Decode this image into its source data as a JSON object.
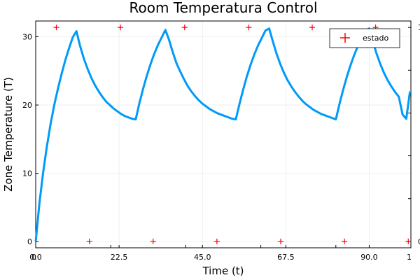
{
  "chart_data": {
    "type": "line",
    "title": "Room Temperatura Control",
    "xlabel": "Time (t)",
    "ylabel": "Zone Temperature (T)",
    "grid": true,
    "legend_placement": "top-right",
    "axes": {
      "primary_x": {
        "range": [
          0,
          101.25
        ],
        "ticks": [
          0,
          22.5,
          45,
          67.5,
          90
        ],
        "tick_labels": [
          "0.0",
          "22.5",
          "45.0",
          "67.5",
          "90.0"
        ]
      },
      "primary_y": {
        "range": [
          -0.9,
          32.3
        ],
        "ticks": [
          0,
          10,
          20,
          30
        ],
        "tick_labels": [
          "0",
          "10",
          "20",
          "30"
        ]
      },
      "secondary_x": {
        "range": [
          0,
          1.0
        ],
        "ticks": [
          0,
          0.2,
          0.4,
          0.6,
          0.8,
          1.0
        ],
        "tick_labels": [
          "0",
          "",
          "",
          "",
          "",
          "1"
        ]
      },
      "secondary_y": {
        "range": [
          -0.03,
          1.03
        ],
        "ticks": [
          0,
          0.2,
          0.4,
          0.6,
          0.8,
          1.0
        ],
        "tick_labels": [
          "0",
          "",
          "",
          "",
          "",
          "1"
        ]
      }
    },
    "series": [
      {
        "name": "",
        "color": "#009AF9",
        "x": [
          0,
          1,
          2,
          3,
          4,
          5,
          6,
          7,
          8,
          9,
          10,
          11,
          12,
          13,
          14,
          15,
          16,
          17,
          18,
          19,
          20,
          21,
          22,
          23,
          24,
          25,
          26,
          27,
          28,
          29,
          30,
          31,
          32,
          33,
          34,
          35,
          36,
          37,
          38,
          39,
          40,
          41,
          42,
          43,
          44,
          45,
          46,
          47,
          48,
          49,
          50,
          51,
          52,
          53,
          54,
          55,
          56,
          57,
          58,
          59,
          60,
          61,
          62,
          63,
          64,
          65,
          66,
          67,
          68,
          69,
          70,
          71,
          72,
          73,
          74,
          75,
          76,
          77,
          78,
          79,
          80,
          81,
          82,
          83,
          84,
          85,
          86,
          87,
          88,
          89,
          90,
          91,
          92,
          93,
          94,
          95,
          96,
          97,
          98,
          99,
          100,
          101
        ],
        "y": [
          0,
          5.6,
          10.1,
          13.9,
          17.2,
          20.0,
          22.4,
          24.6,
          26.6,
          28.3,
          29.9,
          30.8,
          28.6,
          26.8,
          25.3,
          24.0,
          22.9,
          22.0,
          21.2,
          20.5,
          20.0,
          19.5,
          19.1,
          18.7,
          18.4,
          18.2,
          18.0,
          17.9,
          20.3,
          22.4,
          24.3,
          26.0,
          27.5,
          28.8,
          29.9,
          31.0,
          29.5,
          27.7,
          26.1,
          24.9,
          23.8,
          22.8,
          22.0,
          21.3,
          20.7,
          20.2,
          19.8,
          19.4,
          19.1,
          18.8,
          18.6,
          18.4,
          18.2,
          18.0,
          17.9,
          20.2,
          22.3,
          24.2,
          25.9,
          27.4,
          28.7,
          29.8,
          30.9,
          31.2,
          29.3,
          27.5,
          26.0,
          24.7,
          23.6,
          22.7,
          21.9,
          21.2,
          20.6,
          20.1,
          19.7,
          19.3,
          19.0,
          18.7,
          18.5,
          18.3,
          18.1,
          17.9,
          20.2,
          22.3,
          24.2,
          25.9,
          27.4,
          28.7,
          29.8,
          30.9,
          31.2,
          29.3,
          27.5,
          26.0,
          24.7,
          23.6,
          22.7,
          21.9,
          21.2,
          18.6,
          18.0,
          22.0
        ]
      },
      {
        "name": "estado",
        "color": "#FF0000",
        "marker": "+",
        "axis": "secondary",
        "x": [
          0.055,
          0.143,
          0.226,
          0.313,
          0.397,
          0.483,
          0.568,
          0.653,
          0.737,
          0.823,
          0.906,
          0.993
        ],
        "y": [
          1,
          0,
          1,
          0,
          1,
          0,
          1,
          0,
          1,
          0,
          1,
          0
        ]
      }
    ]
  }
}
